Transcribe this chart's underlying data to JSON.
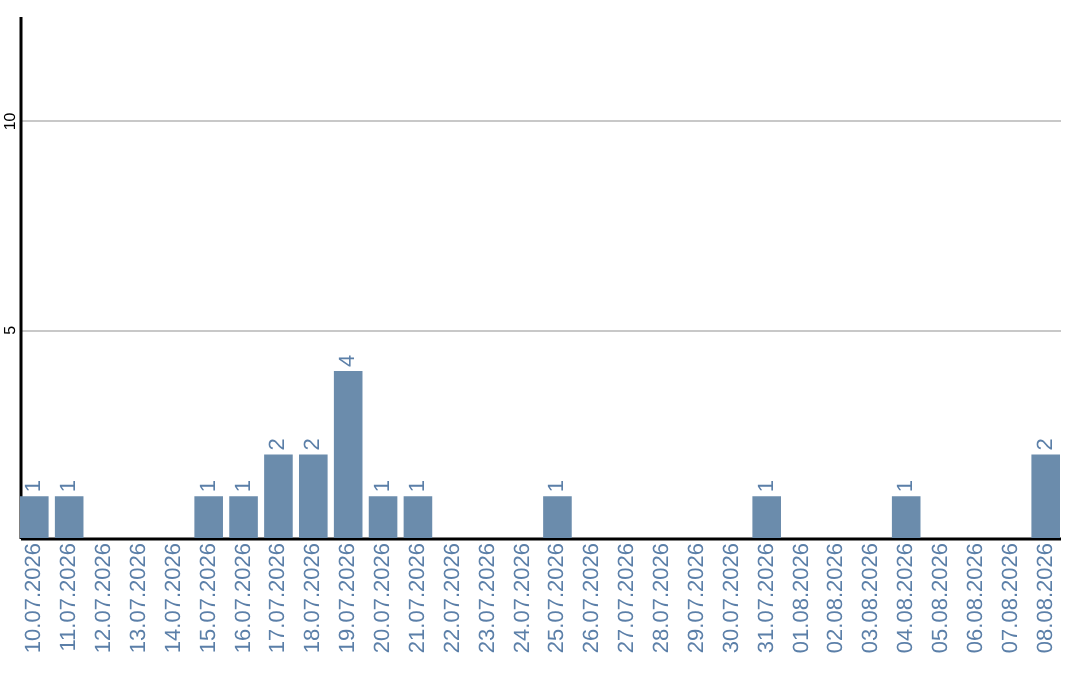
{
  "chart_data": {
    "type": "bar",
    "categories": [
      "10.07.2026",
      "11.07.2026",
      "12.07.2026",
      "13.07.2026",
      "14.07.2026",
      "15.07.2026",
      "16.07.2026",
      "17.07.2026",
      "18.07.2026",
      "19.07.2026",
      "20.07.2026",
      "21.07.2026",
      "22.07.2026",
      "23.07.2026",
      "24.07.2026",
      "25.07.2026",
      "26.07.2026",
      "27.07.2026",
      "28.07.2026",
      "29.07.2026",
      "30.07.2026",
      "31.07.2026",
      "01.08.2026",
      "02.08.2026",
      "03.08.2026",
      "04.08.2026",
      "05.08.2026",
      "06.08.2026",
      "07.08.2026",
      "08.08.2026"
    ],
    "values": [
      1,
      1,
      0,
      0,
      0,
      1,
      1,
      2,
      2,
      4,
      1,
      1,
      0,
      0,
      0,
      1,
      0,
      0,
      0,
      0,
      0,
      1,
      0,
      0,
      0,
      1,
      0,
      0,
      0,
      2
    ],
    "value_labels": [
      "1",
      "1",
      null,
      null,
      null,
      "1",
      "1",
      "2",
      "2",
      "4",
      "1",
      "1",
      null,
      null,
      null,
      "1",
      null,
      null,
      null,
      null,
      null,
      "1",
      null,
      null,
      null,
      "1",
      null,
      null,
      null,
      "2"
    ],
    "color": "#6b8cac",
    "ylim": [
      0,
      12.5
    ],
    "yticks": [
      5,
      10
    ],
    "grid": "y"
  }
}
